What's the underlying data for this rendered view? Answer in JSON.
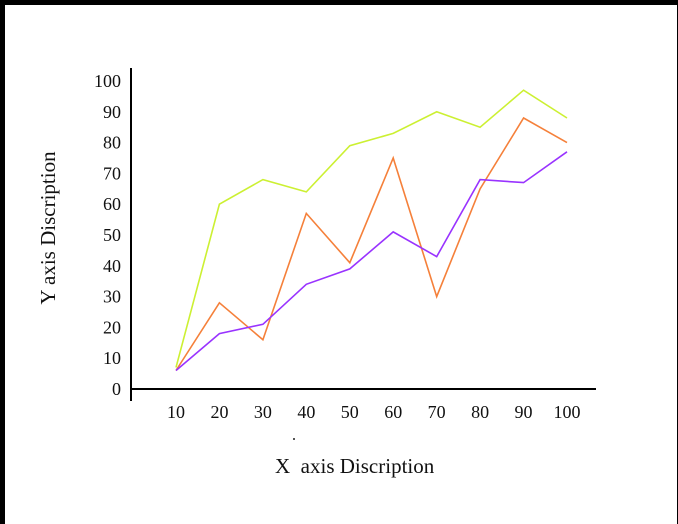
{
  "chart_data": {
    "type": "line",
    "title": "",
    "xlabel": "X  axis Discription",
    "ylabel": "Y axis Discription",
    "x": [
      10,
      20,
      30,
      40,
      50,
      60,
      70,
      80,
      90,
      100
    ],
    "x_ticks": [
      "10",
      "20",
      "30",
      "40",
      "50",
      "60",
      "70",
      "80",
      "90",
      "100"
    ],
    "y_ticks": [
      "0",
      "10",
      "20",
      "30",
      "40",
      "50",
      "60",
      "70",
      "80",
      "90",
      "100"
    ],
    "ylim": [
      0,
      100
    ],
    "grid": false,
    "legend": "none",
    "series": [
      {
        "color": "#ccf032",
        "points": [
          [
            10,
            7
          ],
          [
            20,
            60
          ],
          [
            30,
            68
          ],
          [
            40,
            64
          ],
          [
            50,
            79
          ],
          [
            60,
            83
          ],
          [
            70,
            90
          ],
          [
            80,
            85
          ],
          [
            90,
            97
          ],
          [
            100,
            88
          ]
        ]
      },
      {
        "color": "#f5803a",
        "points": [
          [
            10,
            6
          ],
          [
            20,
            28
          ],
          [
            30,
            16
          ],
          [
            40,
            57
          ],
          [
            50,
            41
          ],
          [
            60,
            75
          ],
          [
            70,
            30
          ],
          [
            80,
            65
          ],
          [
            90,
            88
          ],
          [
            100,
            80
          ]
        ]
      },
      {
        "color": "#9933ff",
        "points": [
          [
            10,
            6
          ],
          [
            20,
            18
          ],
          [
            30,
            21
          ],
          [
            40,
            34
          ],
          [
            50,
            39
          ],
          [
            60,
            51
          ],
          [
            70,
            43
          ],
          [
            80,
            68
          ],
          [
            90,
            67
          ],
          [
            100,
            77
          ]
        ]
      }
    ]
  }
}
